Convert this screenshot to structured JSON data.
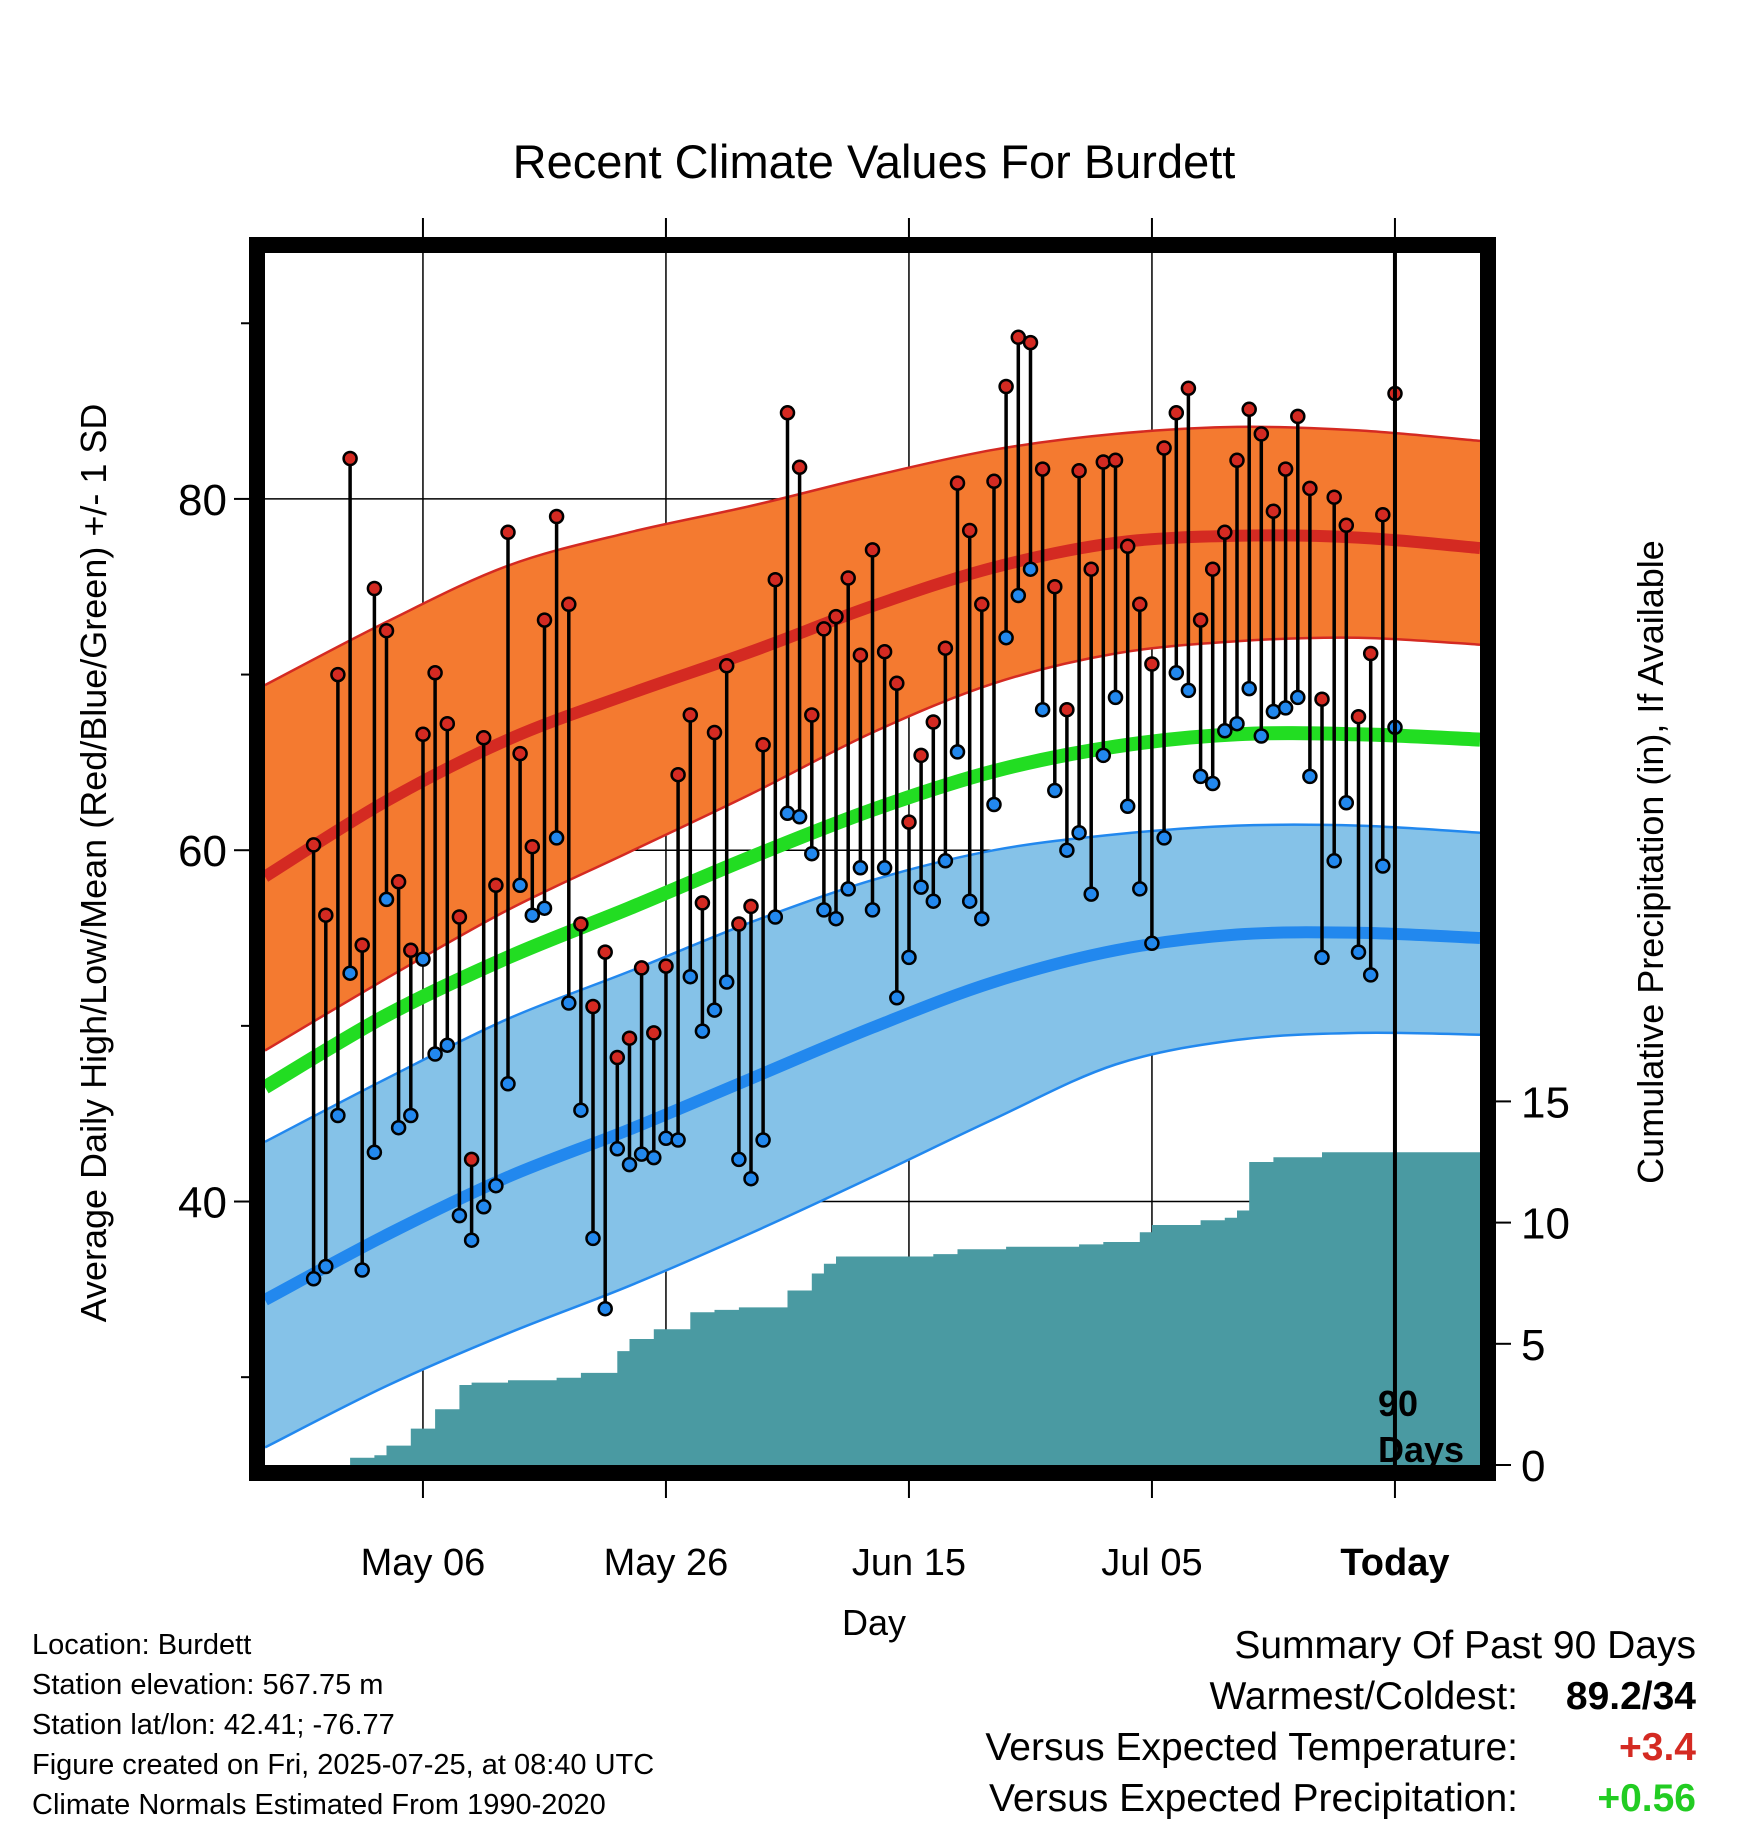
{
  "title": "Recent Climate Values For Burdett",
  "colors": {
    "high_band": "#f47a30",
    "high_band_edge": "#d42a22",
    "high_mean": "#d42a22",
    "low_band": "#85c2e8",
    "low_band_edge": "#2288ee",
    "low_mean": "#2288ee",
    "overall_mean": "#22dd22",
    "precip": "#4a9aa2",
    "marker_high": "#d42a22",
    "marker_low": "#2288ee",
    "departure_temp": "#d42a22",
    "departure_precip": "#22cc22"
  },
  "chart_data": {
    "type": "line",
    "title": "Recent Climate Values For Burdett",
    "xlabel": "Day",
    "ylabel": "Average Daily High/Low/Mean (Red/Blue/Green) +/- 1 SD",
    "y2label": "Cumulative Precipitation (in), If Available",
    "x_day_range": [
      -93,
      7
    ],
    "ylim": [
      25,
      94
    ],
    "y2lim": [
      0,
      50
    ],
    "y_ticks": [
      40,
      60,
      80
    ],
    "y_minor_ticks": [
      30,
      50,
      70,
      90
    ],
    "y2_ticks": [
      0,
      5,
      10,
      15
    ],
    "x_ticks": [
      {
        "day": -80,
        "label": "May 06"
      },
      {
        "day": -60,
        "label": "May 26"
      },
      {
        "day": -40,
        "label": "Jun 15"
      },
      {
        "day": -20,
        "label": "Jul 05"
      },
      {
        "day": 0,
        "label": "Today"
      }
    ],
    "today_marker": {
      "day": 0,
      "label_line1": "90",
      "label_line2": "Days"
    },
    "grid": true,
    "normals_days": [
      -93,
      -83,
      -73,
      -63,
      -53,
      -43,
      -33,
      -23,
      -13,
      -3,
      7
    ],
    "normal_high_mean": [
      58.5,
      62.8,
      66.3,
      68.9,
      71.3,
      73.9,
      76.1,
      77.5,
      77.9,
      77.8,
      77.2
    ],
    "normal_high_upper": [
      69.4,
      73.0,
      76.2,
      78.1,
      79.6,
      81.3,
      82.8,
      83.7,
      84.1,
      83.9,
      83.3
    ],
    "normal_high_lower": [
      48.6,
      52.7,
      56.6,
      59.9,
      63.2,
      66.7,
      69.5,
      71.2,
      71.9,
      72.1,
      71.7
    ],
    "normal_mean": [
      46.5,
      50.6,
      53.9,
      56.7,
      59.6,
      62.3,
      64.5,
      65.9,
      66.6,
      66.6,
      66.3
    ],
    "normal_low_mean": [
      34.4,
      38.1,
      41.4,
      44.1,
      47.0,
      49.9,
      52.5,
      54.3,
      55.2,
      55.3,
      55.0
    ],
    "normal_low_upper": [
      43.4,
      47.0,
      50.4,
      53.1,
      55.9,
      58.3,
      60.0,
      60.9,
      61.4,
      61.4,
      61.0
    ],
    "normal_low_lower": [
      26.0,
      29.5,
      32.5,
      35.2,
      38.2,
      41.4,
      44.7,
      47.8,
      49.2,
      49.6,
      49.5
    ],
    "precip_days": [
      -86,
      -84,
      -83,
      -81,
      -79,
      -77,
      -76,
      -75,
      -73,
      -71,
      -69,
      -67,
      -66,
      -64,
      -63,
      -61,
      -59,
      -58,
      -56,
      -54,
      -52,
      -50,
      -48,
      -47,
      -46,
      -44,
      -42,
      -40,
      -38,
      -36,
      -34,
      -32,
      -30,
      -28,
      -26,
      -24,
      -22,
      -21,
      -20,
      -18,
      -16,
      -14,
      -13,
      -12,
      -10,
      -8,
      -6,
      -4,
      7
    ],
    "precip_inches": [
      0.3,
      0.4,
      0.8,
      1.5,
      2.3,
      3.3,
      3.4,
      3.4,
      3.5,
      3.5,
      3.6,
      3.8,
      3.8,
      4.7,
      5.2,
      5.6,
      5.6,
      6.3,
      6.4,
      6.5,
      6.5,
      7.2,
      7.9,
      8.3,
      8.6,
      8.6,
      8.6,
      8.6,
      8.7,
      8.9,
      8.9,
      9.0,
      9.0,
      9.0,
      9.1,
      9.2,
      9.2,
      9.6,
      9.9,
      9.9,
      10.1,
      10.2,
      10.5,
      12.5,
      12.7,
      12.7,
      12.9,
      12.9,
      12.9
    ],
    "series": [
      {
        "name": "High",
        "values": [
          60.3,
          56.3,
          70.0,
          82.3,
          54.6,
          74.9,
          72.5,
          58.2,
          54.3,
          66.6,
          70.1,
          67.2,
          56.2,
          42.4,
          66.4,
          58.0,
          78.1,
          65.5,
          60.2,
          73.1,
          79.0,
          74.0,
          55.8,
          51.1,
          54.2,
          48.2,
          49.3,
          53.3,
          49.6,
          53.4,
          64.3,
          67.7,
          57.0,
          66.7,
          70.5,
          55.8,
          56.8,
          66.0,
          75.4,
          84.9,
          81.8,
          67.7,
          72.6,
          73.3,
          75.5,
          71.1,
          77.1,
          71.3,
          69.5,
          61.6,
          65.4,
          67.3,
          71.5,
          80.9,
          78.2,
          74.0,
          81.0,
          86.4,
          89.2,
          88.9,
          81.7,
          75.0,
          68.0,
          81.6,
          76.0,
          82.1,
          82.2,
          77.3,
          74.0,
          70.6,
          82.9,
          84.9,
          86.3,
          73.1,
          76.0,
          78.1,
          82.2,
          85.1,
          83.7,
          79.3,
          81.7,
          84.7,
          80.6,
          68.6,
          80.1,
          78.5,
          67.6,
          71.2,
          79.1,
          86.0
        ]
      },
      {
        "name": "Low",
        "values": [
          35.6,
          36.3,
          44.9,
          53.0,
          36.1,
          42.8,
          57.2,
          44.2,
          44.9,
          53.8,
          48.4,
          48.9,
          39.2,
          37.8,
          39.7,
          40.9,
          46.7,
          58.0,
          56.3,
          56.7,
          60.7,
          51.3,
          45.2,
          37.9,
          33.9,
          43.0,
          42.1,
          42.7,
          42.5,
          43.6,
          43.5,
          52.8,
          49.7,
          50.9,
          52.5,
          42.4,
          41.3,
          43.5,
          56.2,
          62.1,
          61.9,
          59.8,
          56.6,
          56.1,
          57.8,
          59.0,
          56.6,
          59.0,
          51.6,
          53.9,
          57.9,
          57.1,
          59.4,
          65.6,
          57.1,
          56.1,
          62.6,
          72.1,
          74.5,
          76.0,
          68.0,
          63.4,
          60.0,
          61.0,
          57.5,
          65.4,
          68.7,
          62.5,
          57.8,
          54.7,
          60.7,
          70.1,
          69.1,
          64.2,
          63.8,
          66.8,
          67.2,
          69.2,
          66.5,
          67.9,
          68.1,
          68.7,
          64.2,
          53.9,
          59.4,
          62.7,
          54.2,
          52.9,
          59.1,
          67.0
        ]
      }
    ]
  },
  "footer": {
    "location": "Location: Burdett",
    "elevation": "Station elevation: 567.75 m",
    "latlon": "Station lat/lon: 42.41; -76.77",
    "created": "Figure created on Fri, 2025-07-25, at 08:40 UTC",
    "normals": "Climate Normals Estimated From 1990-2020"
  },
  "summary": {
    "heading": "Summary Of Past 90 Days",
    "warmest_coldest_label": "Warmest/Coldest:",
    "warmest_coldest_value": "89.2/34",
    "temp_label": "Versus Expected Temperature:",
    "temp_value": "+3.4",
    "precip_label": "Versus Expected Precipitation:",
    "precip_value": "+0.56"
  }
}
